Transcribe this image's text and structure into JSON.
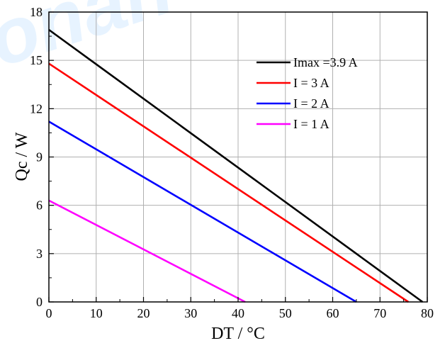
{
  "chart_data": {
    "type": "line",
    "title": "",
    "xlabel": "DT / °C",
    "ylabel": "Qc / W",
    "xlim": [
      0,
      80
    ],
    "ylim": [
      0,
      18
    ],
    "x_ticks": [
      "0",
      "10",
      "20",
      "30",
      "40",
      "50",
      "60",
      "70",
      "80"
    ],
    "y_ticks": [
      "0",
      "3",
      "6",
      "9",
      "12",
      "15",
      "18"
    ],
    "grid": true,
    "legend_position": "top-right",
    "series": [
      {
        "name": "Imax =3.9 A",
        "color": "#000000",
        "x": [
          0,
          79
        ],
        "y": [
          16.9,
          0
        ]
      },
      {
        "name": "I = 3 A",
        "color": "#ff0000",
        "x": [
          0,
          76
        ],
        "y": [
          14.8,
          0
        ]
      },
      {
        "name": "I = 2 A",
        "color": "#0000ff",
        "x": [
          0,
          65
        ],
        "y": [
          11.2,
          0
        ]
      },
      {
        "name": "I = 1 A",
        "color": "#ff00ff",
        "x": [
          0,
          41.5
        ],
        "y": [
          6.3,
          0
        ]
      }
    ],
    "watermark": "onan"
  }
}
